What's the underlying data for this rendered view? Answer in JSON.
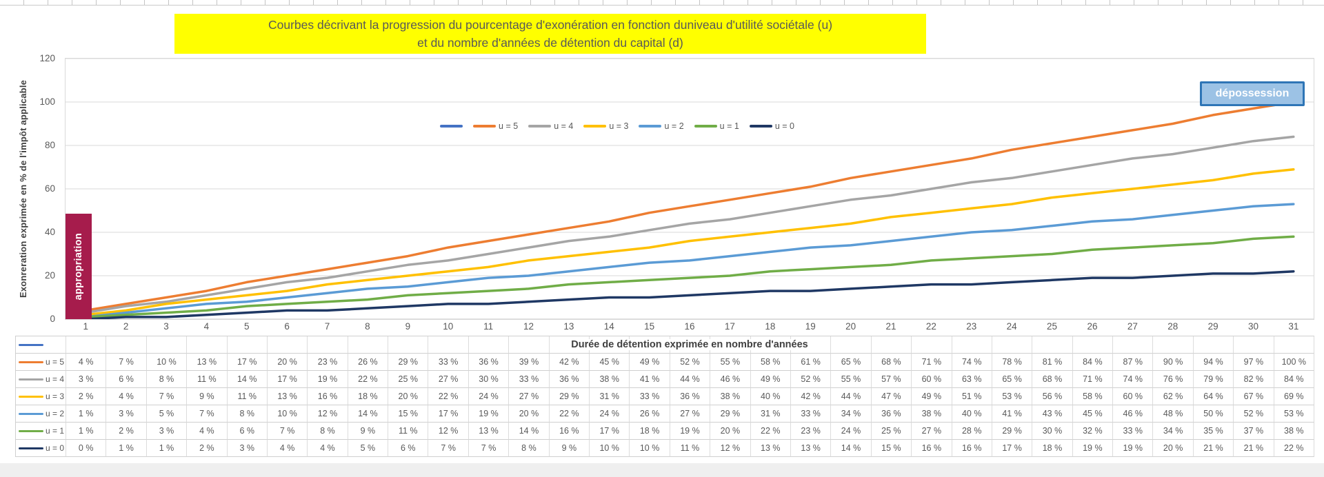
{
  "chart": {
    "title_line1": "Courbes décrivant la progression du pourcentage d'exonération en fonction duniveau d'utilité sociétale (u)",
    "title_line2": "et du nombre d'années de détention du capital (d)",
    "annotations": {
      "appropriation": "appropriation",
      "depossession": "dépossession"
    },
    "colors": {
      "title_bg": "#FFFF00",
      "title_text": "#595959",
      "appropriation_bg": "#A61C4C",
      "depossession_bg": "#9CC2E5",
      "depossession_border": "#2E75B6",
      "gridline": "#D9D9D9",
      "axis_line": "#BFBFBF"
    }
  },
  "chart_data": {
    "type": "line",
    "title": "Courbes décrivant la progression du pourcentage d'exonération en fonction duniveau d'utilité sociétale (u) et du nombre d'années de détention du capital (d)",
    "xlabel": "Durée de détention exprimée en nombre d'années",
    "ylabel": "Exonreration exprimée en % de l'impôt applicable",
    "ylim": [
      0,
      120
    ],
    "y_ticks": [
      0,
      20,
      40,
      60,
      80,
      100,
      120
    ],
    "grid": "horizontal",
    "legend_position": "top-center",
    "value_suffix": " %",
    "x": [
      1,
      2,
      3,
      4,
      5,
      6,
      7,
      8,
      9,
      10,
      11,
      12,
      13,
      14,
      15,
      16,
      17,
      18,
      19,
      20,
      21,
      22,
      23,
      24,
      25,
      26,
      27,
      28,
      29,
      30,
      31
    ],
    "series": [
      {
        "name": "",
        "color": "#4472C4",
        "values": []
      },
      {
        "name": "u = 5",
        "color": "#ED7D31",
        "values": [
          4,
          7,
          10,
          13,
          17,
          20,
          23,
          26,
          29,
          33,
          36,
          39,
          42,
          45,
          49,
          52,
          55,
          58,
          61,
          65,
          68,
          71,
          74,
          78,
          81,
          84,
          87,
          90,
          94,
          97,
          100
        ]
      },
      {
        "name": "u = 4",
        "color": "#A5A5A5",
        "values": [
          3,
          6,
          8,
          11,
          14,
          17,
          19,
          22,
          25,
          27,
          30,
          33,
          36,
          38,
          41,
          44,
          46,
          49,
          52,
          55,
          57,
          60,
          63,
          65,
          68,
          71,
          74,
          76,
          79,
          82,
          84
        ]
      },
      {
        "name": "u = 3",
        "color": "#FFC000",
        "values": [
          2,
          4,
          7,
          9,
          11,
          13,
          16,
          18,
          20,
          22,
          24,
          27,
          29,
          31,
          33,
          36,
          38,
          40,
          42,
          44,
          47,
          49,
          51,
          53,
          56,
          58,
          60,
          62,
          64,
          67,
          69
        ]
      },
      {
        "name": "u = 2",
        "color": "#5B9BD5",
        "values": [
          1,
          3,
          5,
          7,
          8,
          10,
          12,
          14,
          15,
          17,
          19,
          20,
          22,
          24,
          26,
          27,
          29,
          31,
          33,
          34,
          36,
          38,
          40,
          41,
          43,
          45,
          46,
          48,
          50,
          52,
          53
        ]
      },
      {
        "name": "u = 1",
        "color": "#70AD47",
        "values": [
          1,
          2,
          3,
          4,
          6,
          7,
          8,
          9,
          11,
          12,
          13,
          14,
          16,
          17,
          18,
          19,
          20,
          22,
          23,
          24,
          25,
          27,
          28,
          29,
          30,
          32,
          33,
          34,
          35,
          37,
          38
        ]
      },
      {
        "name": "u = 0",
        "color": "#1F3864",
        "values": [
          0,
          1,
          1,
          2,
          3,
          4,
          4,
          5,
          6,
          7,
          7,
          8,
          9,
          10,
          10,
          11,
          12,
          13,
          13,
          14,
          15,
          16,
          16,
          17,
          18,
          19,
          19,
          20,
          21,
          21,
          22
        ]
      }
    ]
  },
  "table": {
    "x_title": "Durée de détention exprimée en nombre d'années"
  }
}
